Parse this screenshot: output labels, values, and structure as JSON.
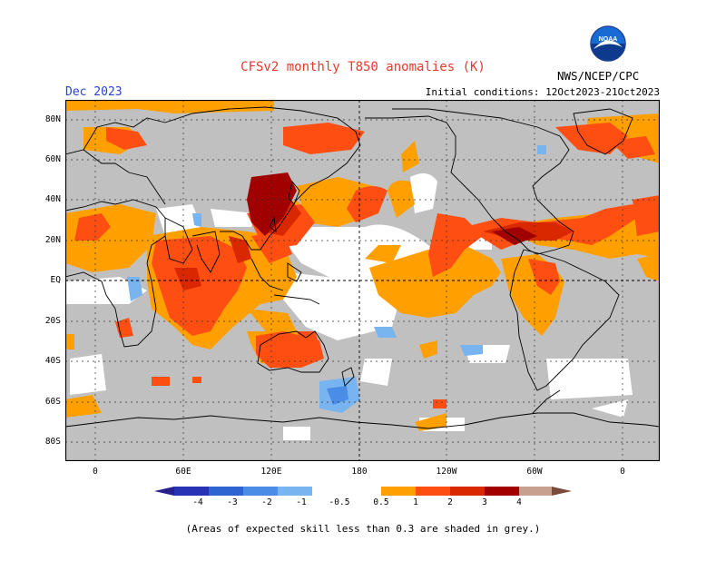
{
  "title": "CFSv2 monthly T850 anomalies (K)",
  "valid_month": "Dec 2023",
  "initial_conditions": "Initial conditions: 12Oct2023-21Oct2023",
  "agency": "NWS/NCEP/CPC",
  "logo_text": "NOAA",
  "footnote": "(Areas of expected skill less than 0.3 are shaded in grey.)",
  "colors": {
    "skill_low": "#c0c0c0",
    "neutral": "#ffffff",
    "pos_0_5": "#ff9f00",
    "pos_1": "#ff4e12",
    "pos_2": "#d92800",
    "pos_3": "#a00000",
    "pos_4": "#c8a090",
    "neg_0_5": "#78b4f0",
    "neg_1": "#4b8ce6",
    "neg_2": "#2d64d2",
    "neg_3": "#2832b4",
    "title_red": "#e8392c",
    "date_blue": "#2b3fd1"
  },
  "latitude_labels": [
    "80N",
    "60N",
    "40N",
    "20N",
    "EQ",
    "20S",
    "40S",
    "60S",
    "80S"
  ],
  "longitude_labels": [
    "0",
    "60E",
    "120E",
    "180",
    "120W",
    "60W",
    "0"
  ],
  "colorbar": {
    "labels": [
      "-4",
      "-3",
      "-2",
      "-1",
      "-0.5",
      "0.5",
      "1",
      "2",
      "3",
      "4"
    ],
    "units": "K"
  }
}
